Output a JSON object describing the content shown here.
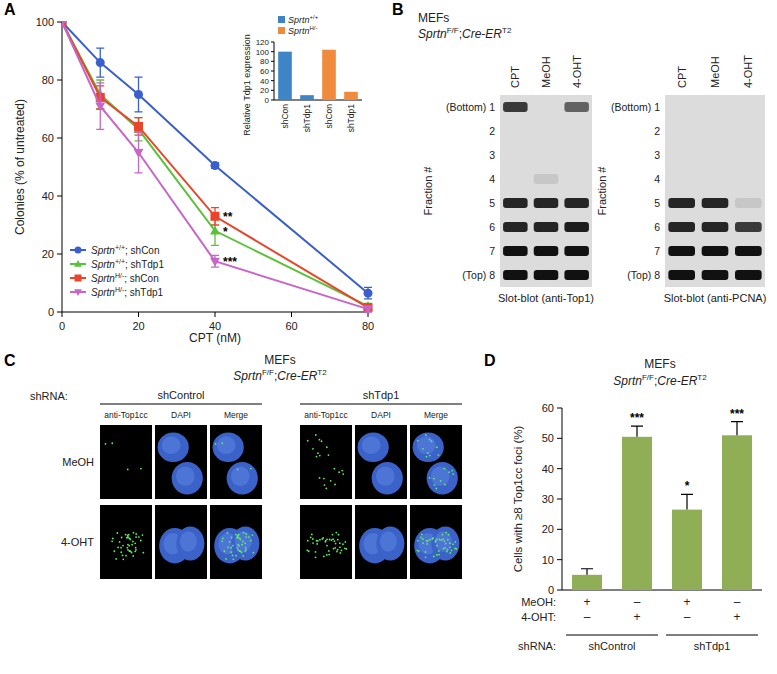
{
  "panel_labels": [
    "A",
    "B",
    "C",
    "D"
  ],
  "chart_data": [
    {
      "type": "line",
      "x_label": "CPT (nM)",
      "y_label": "Colonies (% of untreated)",
      "x": [
        0,
        10,
        20,
        40,
        80
      ],
      "xlim": [
        0,
        80
      ],
      "xticks": [
        0,
        20,
        40,
        60,
        80
      ],
      "ylim": [
        0,
        100
      ],
      "yticks": [
        0,
        20,
        40,
        60,
        80,
        100
      ],
      "legend": "bottom-left",
      "series": [
        {
          "name": "Sprtn+/+; shCon",
          "color": "#3a5fcd",
          "marker": "circle",
          "values": [
            100,
            86,
            75,
            50.5,
            6.5
          ],
          "errors": [
            0,
            5,
            6,
            1,
            2
          ],
          "significance": [
            null,
            null,
            null,
            null,
            null
          ]
        },
        {
          "name": "Sprtn+/+; shTdp1",
          "color": "#5cc13a",
          "marker": "triangle",
          "values": [
            100,
            75,
            63,
            28,
            2
          ],
          "errors": [
            0,
            5,
            4,
            5,
            1
          ],
          "significance": [
            null,
            null,
            null,
            "*",
            null
          ]
        },
        {
          "name": "SprtnH/-; shCon",
          "color": "#e8452c",
          "marker": "square",
          "values": [
            100,
            74,
            64,
            33,
            1.5
          ],
          "errors": [
            0,
            4,
            3,
            3,
            1
          ],
          "significance": [
            null,
            null,
            null,
            "**",
            null
          ]
        },
        {
          "name": "SprtnH/-; shTdp1",
          "color": "#c865c8",
          "marker": "triangle-down",
          "values": [
            100,
            71,
            55,
            17.5,
            1
          ],
          "errors": [
            0,
            8,
            7,
            2,
            1
          ],
          "significance": [
            null,
            null,
            null,
            "***",
            null
          ]
        }
      ]
    },
    {
      "type": "bar",
      "y_label": "Relative Tdp1 expression",
      "categories": [
        "shCon",
        "shTdp1",
        "shCon",
        "shTdp1"
      ],
      "ylim": [
        0,
        120
      ],
      "yticks": [
        0,
        20,
        40,
        60,
        80,
        100,
        120
      ],
      "legend": "top-left",
      "series": [
        {
          "name": "Sprtn+/+",
          "color": "#3d85c6",
          "values": [
            100,
            10,
            null,
            null
          ]
        },
        {
          "name": "SprtnH/-",
          "color": "#f08a3c",
          "values": [
            null,
            null,
            104,
            17
          ]
        }
      ]
    },
    {
      "type": "bar",
      "title": "MEFs",
      "subtitle": [
        {
          "text": "Sprtn",
          "style": "italic"
        },
        {
          "text": "F/F",
          "style": "sup"
        },
        {
          "text": ";",
          "style": "normal"
        },
        {
          "text": "Cre-ER",
          "style": "italic"
        },
        {
          "text": "T2",
          "style": "sup"
        }
      ],
      "y_label": "Cells with ≥8 Top1cc foci (%)",
      "categories": [
        null,
        null,
        null,
        null
      ],
      "values": [
        5,
        50.5,
        26.5,
        51
      ],
      "errors": [
        2,
        3.5,
        5,
        4.5
      ],
      "significance": [
        null,
        "***",
        "*",
        "***"
      ],
      "color": "#8fae56",
      "ylim": [
        0,
        60
      ],
      "yticks": [
        0,
        10,
        20,
        30,
        40,
        50,
        60
      ],
      "condition_table": {
        "rows": [
          {
            "label": "MeOH:",
            "values": [
              "+",
              "–",
              "+",
              "–"
            ]
          },
          {
            "label": "4-OHT:",
            "values": [
              "–",
              "+",
              "–",
              "+"
            ]
          }
        ],
        "shrna_label": "shRNA:",
        "shrna_groups": [
          "shControl",
          "shTdp1"
        ]
      }
    }
  ],
  "blot_panel": {
    "header": "MEFs",
    "genotype": [
      {
        "text": "Sprtn",
        "style": "italic"
      },
      {
        "text": "F/F",
        "style": "sup"
      },
      {
        "text": ";",
        "style": "normal"
      },
      {
        "text": "Cre-ER",
        "style": "italic"
      },
      {
        "text": "T2",
        "style": "sup"
      }
    ],
    "lanes": [
      "CPT",
      "MeOH",
      "4-OHT"
    ],
    "fraction_label": "Fraction #",
    "fractions": [
      "(Bottom) 1",
      "2",
      "3",
      "4",
      "5",
      "6",
      "7",
      "(Top) 8"
    ],
    "blots": [
      {
        "caption": "Slot-blot (anti-Top1)",
        "intensity": [
          [
            0.8,
            0,
            0.6
          ],
          [
            0,
            0,
            0
          ],
          [
            0,
            0,
            0
          ],
          [
            0,
            0.1,
            0
          ],
          [
            0.9,
            0.9,
            0.9
          ],
          [
            0.9,
            0.9,
            0.95
          ],
          [
            1,
            1,
            1
          ],
          [
            1,
            1,
            1
          ]
        ]
      },
      {
        "caption": "Slot-blot (anti-PCNA)",
        "intensity": [
          [
            0,
            0,
            0
          ],
          [
            0,
            0,
            0
          ],
          [
            0,
            0,
            0
          ],
          [
            0,
            0,
            0
          ],
          [
            0.9,
            0.9,
            0.1
          ],
          [
            0.9,
            0.9,
            0.8
          ],
          [
            1,
            1,
            1
          ],
          [
            1,
            1,
            1
          ]
        ]
      }
    ]
  },
  "microscopy_panel": {
    "header": "MEFs",
    "genotype": [
      {
        "text": "Sprtn",
        "style": "italic"
      },
      {
        "text": "F/F",
        "style": "sup"
      },
      {
        "text": ";",
        "style": "normal"
      },
      {
        "text": "Cre-ER",
        "style": "italic"
      },
      {
        "text": "T2",
        "style": "sup"
      }
    ],
    "shrna_label": "shRNA:",
    "groups": [
      "shControl",
      "shTdp1"
    ],
    "channels": [
      "anti-Top1cc",
      "DAPI",
      "Merge"
    ],
    "treatments": [
      "MeOH",
      "4-OHT"
    ]
  }
}
